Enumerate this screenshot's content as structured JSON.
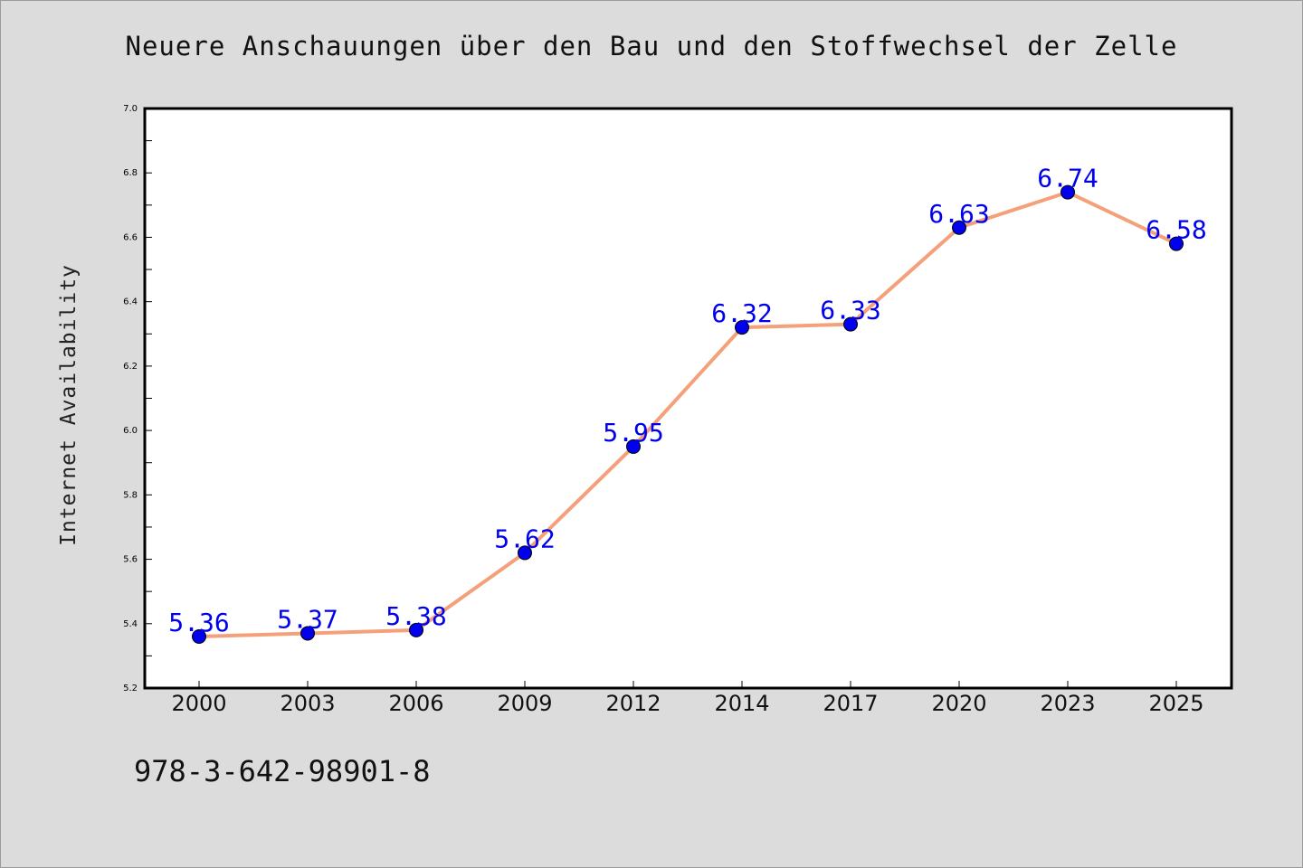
{
  "chart_data": {
    "type": "line",
    "title": "Neuere Anschauungen über den Bau und den Stoffwechsel der Zelle",
    "xlabel": "",
    "ylabel": "Internet Availability",
    "categories": [
      "2000",
      "2003",
      "2006",
      "2009",
      "2012",
      "2014",
      "2017",
      "2020",
      "2023",
      "2025"
    ],
    "series": [
      {
        "values": [
          5.36,
          5.37,
          5.38,
          5.62,
          5.95,
          6.32,
          6.33,
          6.63,
          6.74,
          6.58
        ],
        "labels": [
          "5.36",
          "5.37",
          "5.38",
          "5.62",
          "5.95",
          "6.32",
          "6.33",
          "6.63",
          "6.74",
          "6.58"
        ],
        "line_color": "#f4a07a",
        "marker_color": "#0000ee",
        "label_color": "#0000ee"
      }
    ],
    "ylim": [
      5.2,
      7.0
    ],
    "yticks": [
      "5.2",
      "5.4",
      "5.6",
      "5.8",
      "6.0",
      "6.2",
      "6.4",
      "6.6",
      "6.8",
      "7.0"
    ],
    "grid": false,
    "background": "#ffffff",
    "page_background": "#dcdcdc"
  },
  "footer": {
    "code": "978-3-642-98901-8"
  }
}
